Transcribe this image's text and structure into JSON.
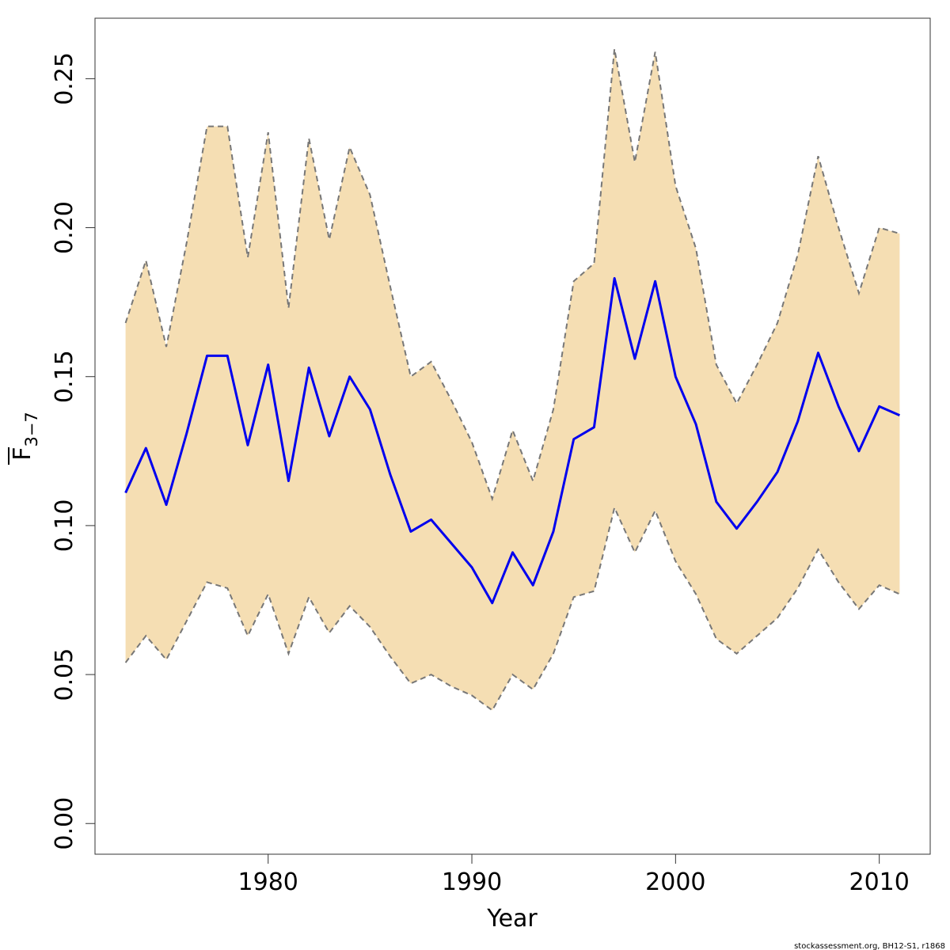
{
  "chart_data": {
    "type": "area",
    "xlabel": "Year",
    "ylabel_main": "F",
    "ylabel_sub": "3−7",
    "xlim": [
      1971.5,
      2012.5
    ],
    "ylim": [
      -0.0103,
      0.2703
    ],
    "x_ticks": [
      1980,
      1990,
      2000,
      2010
    ],
    "y_ticks": [
      0.0,
      0.05,
      0.1,
      0.15,
      0.2,
      0.25
    ],
    "y_tick_labels": [
      "0.00",
      "0.05",
      "0.10",
      "0.15",
      "0.20",
      "0.25"
    ],
    "grid": false,
    "x": [
      1973,
      1974,
      1975,
      1976,
      1977,
      1978,
      1979,
      1980,
      1981,
      1982,
      1983,
      1984,
      1985,
      1986,
      1987,
      1988,
      1989,
      1990,
      1991,
      1992,
      1993,
      1994,
      1995,
      1996,
      1997,
      1998,
      1999,
      2000,
      2001,
      2002,
      2003,
      2004,
      2005,
      2006,
      2007,
      2008,
      2009,
      2010,
      2011
    ],
    "series": [
      {
        "role": "estimate",
        "color": "#0000ee",
        "values": [
          0.111,
          0.126,
          0.107,
          0.131,
          0.157,
          0.157,
          0.127,
          0.154,
          0.115,
          0.153,
          0.13,
          0.15,
          0.139,
          0.117,
          0.098,
          0.102,
          0.094,
          0.086,
          0.074,
          0.091,
          0.08,
          0.098,
          0.129,
          0.133,
          0.183,
          0.156,
          0.182,
          0.15,
          0.134,
          0.108,
          0.099,
          0.108,
          0.118,
          0.135,
          0.158,
          0.14,
          0.125,
          0.14,
          0.137
        ]
      },
      {
        "role": "upper",
        "color": "#777777",
        "values": [
          0.168,
          0.189,
          0.16,
          0.195,
          0.234,
          0.234,
          0.19,
          0.232,
          0.173,
          0.23,
          0.196,
          0.227,
          0.211,
          0.18,
          0.15,
          0.155,
          0.142,
          0.128,
          0.109,
          0.132,
          0.115,
          0.139,
          0.182,
          0.188,
          0.26,
          0.222,
          0.259,
          0.214,
          0.193,
          0.154,
          0.141,
          0.154,
          0.168,
          0.191,
          0.224,
          0.2,
          0.178,
          0.2,
          0.198
        ]
      },
      {
        "role": "lower",
        "color": "#777777",
        "values": [
          0.054,
          0.063,
          0.055,
          0.068,
          0.081,
          0.079,
          0.063,
          0.077,
          0.057,
          0.076,
          0.064,
          0.073,
          0.066,
          0.056,
          0.047,
          0.05,
          0.046,
          0.043,
          0.038,
          0.05,
          0.045,
          0.057,
          0.076,
          0.078,
          0.106,
          0.091,
          0.105,
          0.088,
          0.077,
          0.062,
          0.057,
          0.063,
          0.069,
          0.079,
          0.092,
          0.081,
          0.072,
          0.08,
          0.077
        ]
      }
    ],
    "band_color": "#f5deb3"
  },
  "footer_text": "stockassessment.org, BH12-S1, r1868"
}
